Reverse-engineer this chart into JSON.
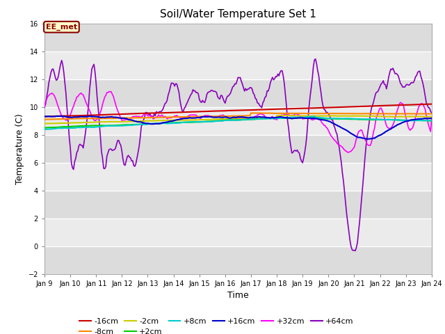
{
  "title": "Soil/Water Temperature Set 1",
  "xlabel": "Time",
  "ylabel": "Temperature (C)",
  "ylim": [
    -2,
    16
  ],
  "yticks": [
    -2,
    0,
    2,
    4,
    6,
    8,
    10,
    12,
    14,
    16
  ],
  "fig_bg": "#ffffff",
  "plot_bg_dark": "#dcdcdc",
  "plot_bg_light": "#ebebeb",
  "annotation_text": "EE_met",
  "annotation_box_color": "#ffffcc",
  "annotation_border_color": "#8B0000",
  "series": {
    "-16cm": {
      "color": "#cc0000",
      "lw": 1.5,
      "zorder": 5
    },
    "-8cm": {
      "color": "#ff8800",
      "lw": 1.5,
      "zorder": 5
    },
    "-2cm": {
      "color": "#cccc00",
      "lw": 1.5,
      "zorder": 5
    },
    "+2cm": {
      "color": "#00cc00",
      "lw": 1.5,
      "zorder": 5
    },
    "+8cm": {
      "color": "#00cccc",
      "lw": 1.5,
      "zorder": 5
    },
    "+16cm": {
      "color": "#0000cc",
      "lw": 1.5,
      "zorder": 5
    },
    "+32cm": {
      "color": "#ff00ff",
      "lw": 1.2,
      "zorder": 4
    },
    "+64cm": {
      "color": "#8800bb",
      "lw": 1.2,
      "zorder": 3
    }
  },
  "legend_order": [
    "-16cm",
    "-8cm",
    "-2cm",
    "+2cm",
    "+8cm",
    "+16cm",
    "+32cm",
    "+64cm"
  ]
}
